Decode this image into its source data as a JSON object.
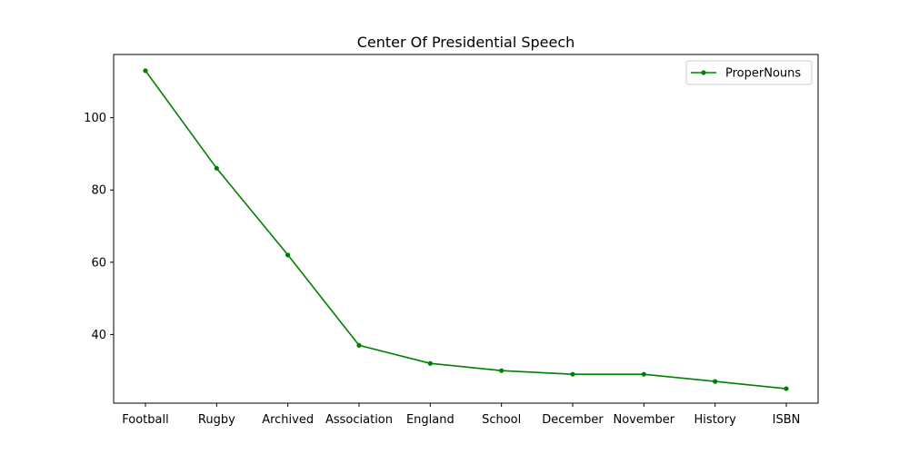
{
  "chart_data": {
    "type": "line",
    "title": "Center Of Presidential Speech",
    "xlabel": "",
    "ylabel": "",
    "categories": [
      "Football",
      "Rugby",
      "Archived",
      "Association",
      "England",
      "School",
      "December",
      "November",
      "History",
      "ISBN"
    ],
    "series": [
      {
        "name": "ProperNouns",
        "color": "#008000",
        "marker": "point",
        "values": [
          113,
          86,
          62,
          37,
          32,
          30,
          29,
          29,
          27,
          25
        ]
      }
    ],
    "ylim": [
      21,
      117.5
    ],
    "yticks": [
      40,
      60,
      80,
      100
    ],
    "grid": false,
    "legend_position": "top-right"
  }
}
